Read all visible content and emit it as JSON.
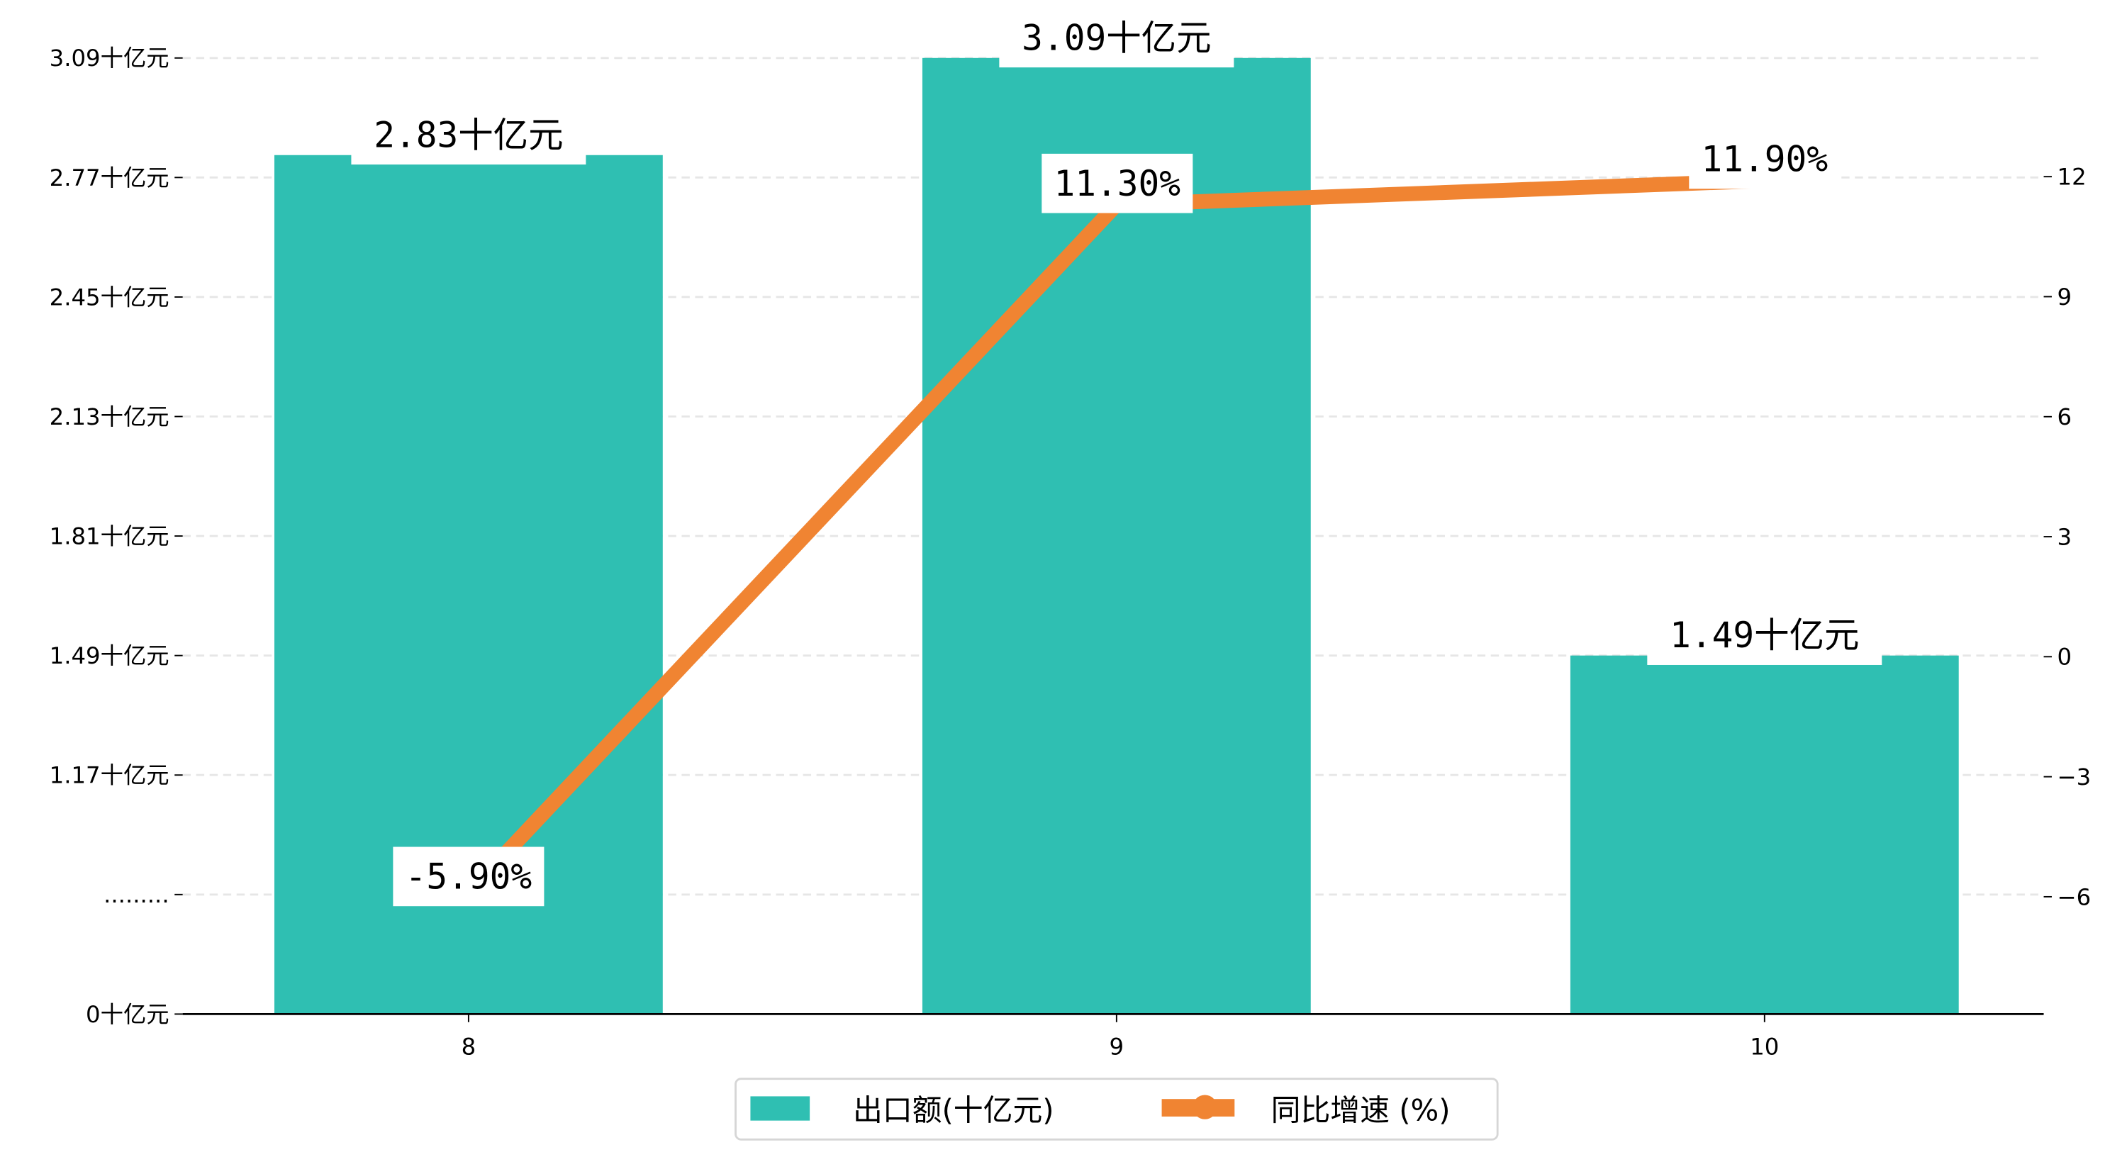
{
  "chart_data": {
    "type": "bar+line",
    "categories": [
      "8",
      "9",
      "10"
    ],
    "series": [
      {
        "name": "出口额(十亿元)",
        "type": "bar",
        "axis": "left",
        "values": [
          2.83,
          3.09,
          1.49
        ],
        "labels": [
          "2.83十亿元",
          "3.09十亿元",
          "1.49十亿元"
        ],
        "color": "#2fbfb2"
      },
      {
        "name": "同比增速 (%)",
        "type": "line",
        "axis": "right",
        "values": [
          -5.9,
          11.3,
          11.9
        ],
        "labels": [
          "-5.90%",
          "11.30%",
          "11.90%"
        ],
        "color": "#f08432"
      }
    ],
    "left_axis": {
      "ticks": [
        {
          "value": 0,
          "label": "0十亿元"
        },
        {
          "value": 0.85,
          "label": "........."
        },
        {
          "value": 1.17,
          "label": "1.17十亿元"
        },
        {
          "value": 1.49,
          "label": "1.49十亿元"
        },
        {
          "value": 1.81,
          "label": "1.81十亿元"
        },
        {
          "value": 2.13,
          "label": "2.13十亿元"
        },
        {
          "value": 2.45,
          "label": "2.45十亿元"
        },
        {
          "value": 2.77,
          "label": "2.77十亿元"
        },
        {
          "value": 3.09,
          "label": "3.09十亿元"
        }
      ],
      "broken": true
    },
    "right_axis": {
      "ticks": [
        -6,
        -3,
        0,
        3,
        6,
        9,
        12
      ],
      "labels": [
        "−6",
        "−3",
        "0",
        "3",
        "6",
        "9",
        "12"
      ]
    },
    "grid": true,
    "legend": {
      "placement": "bottom-center",
      "entries": [
        "出口额(十亿元)",
        "同比增速 (%)"
      ]
    }
  }
}
